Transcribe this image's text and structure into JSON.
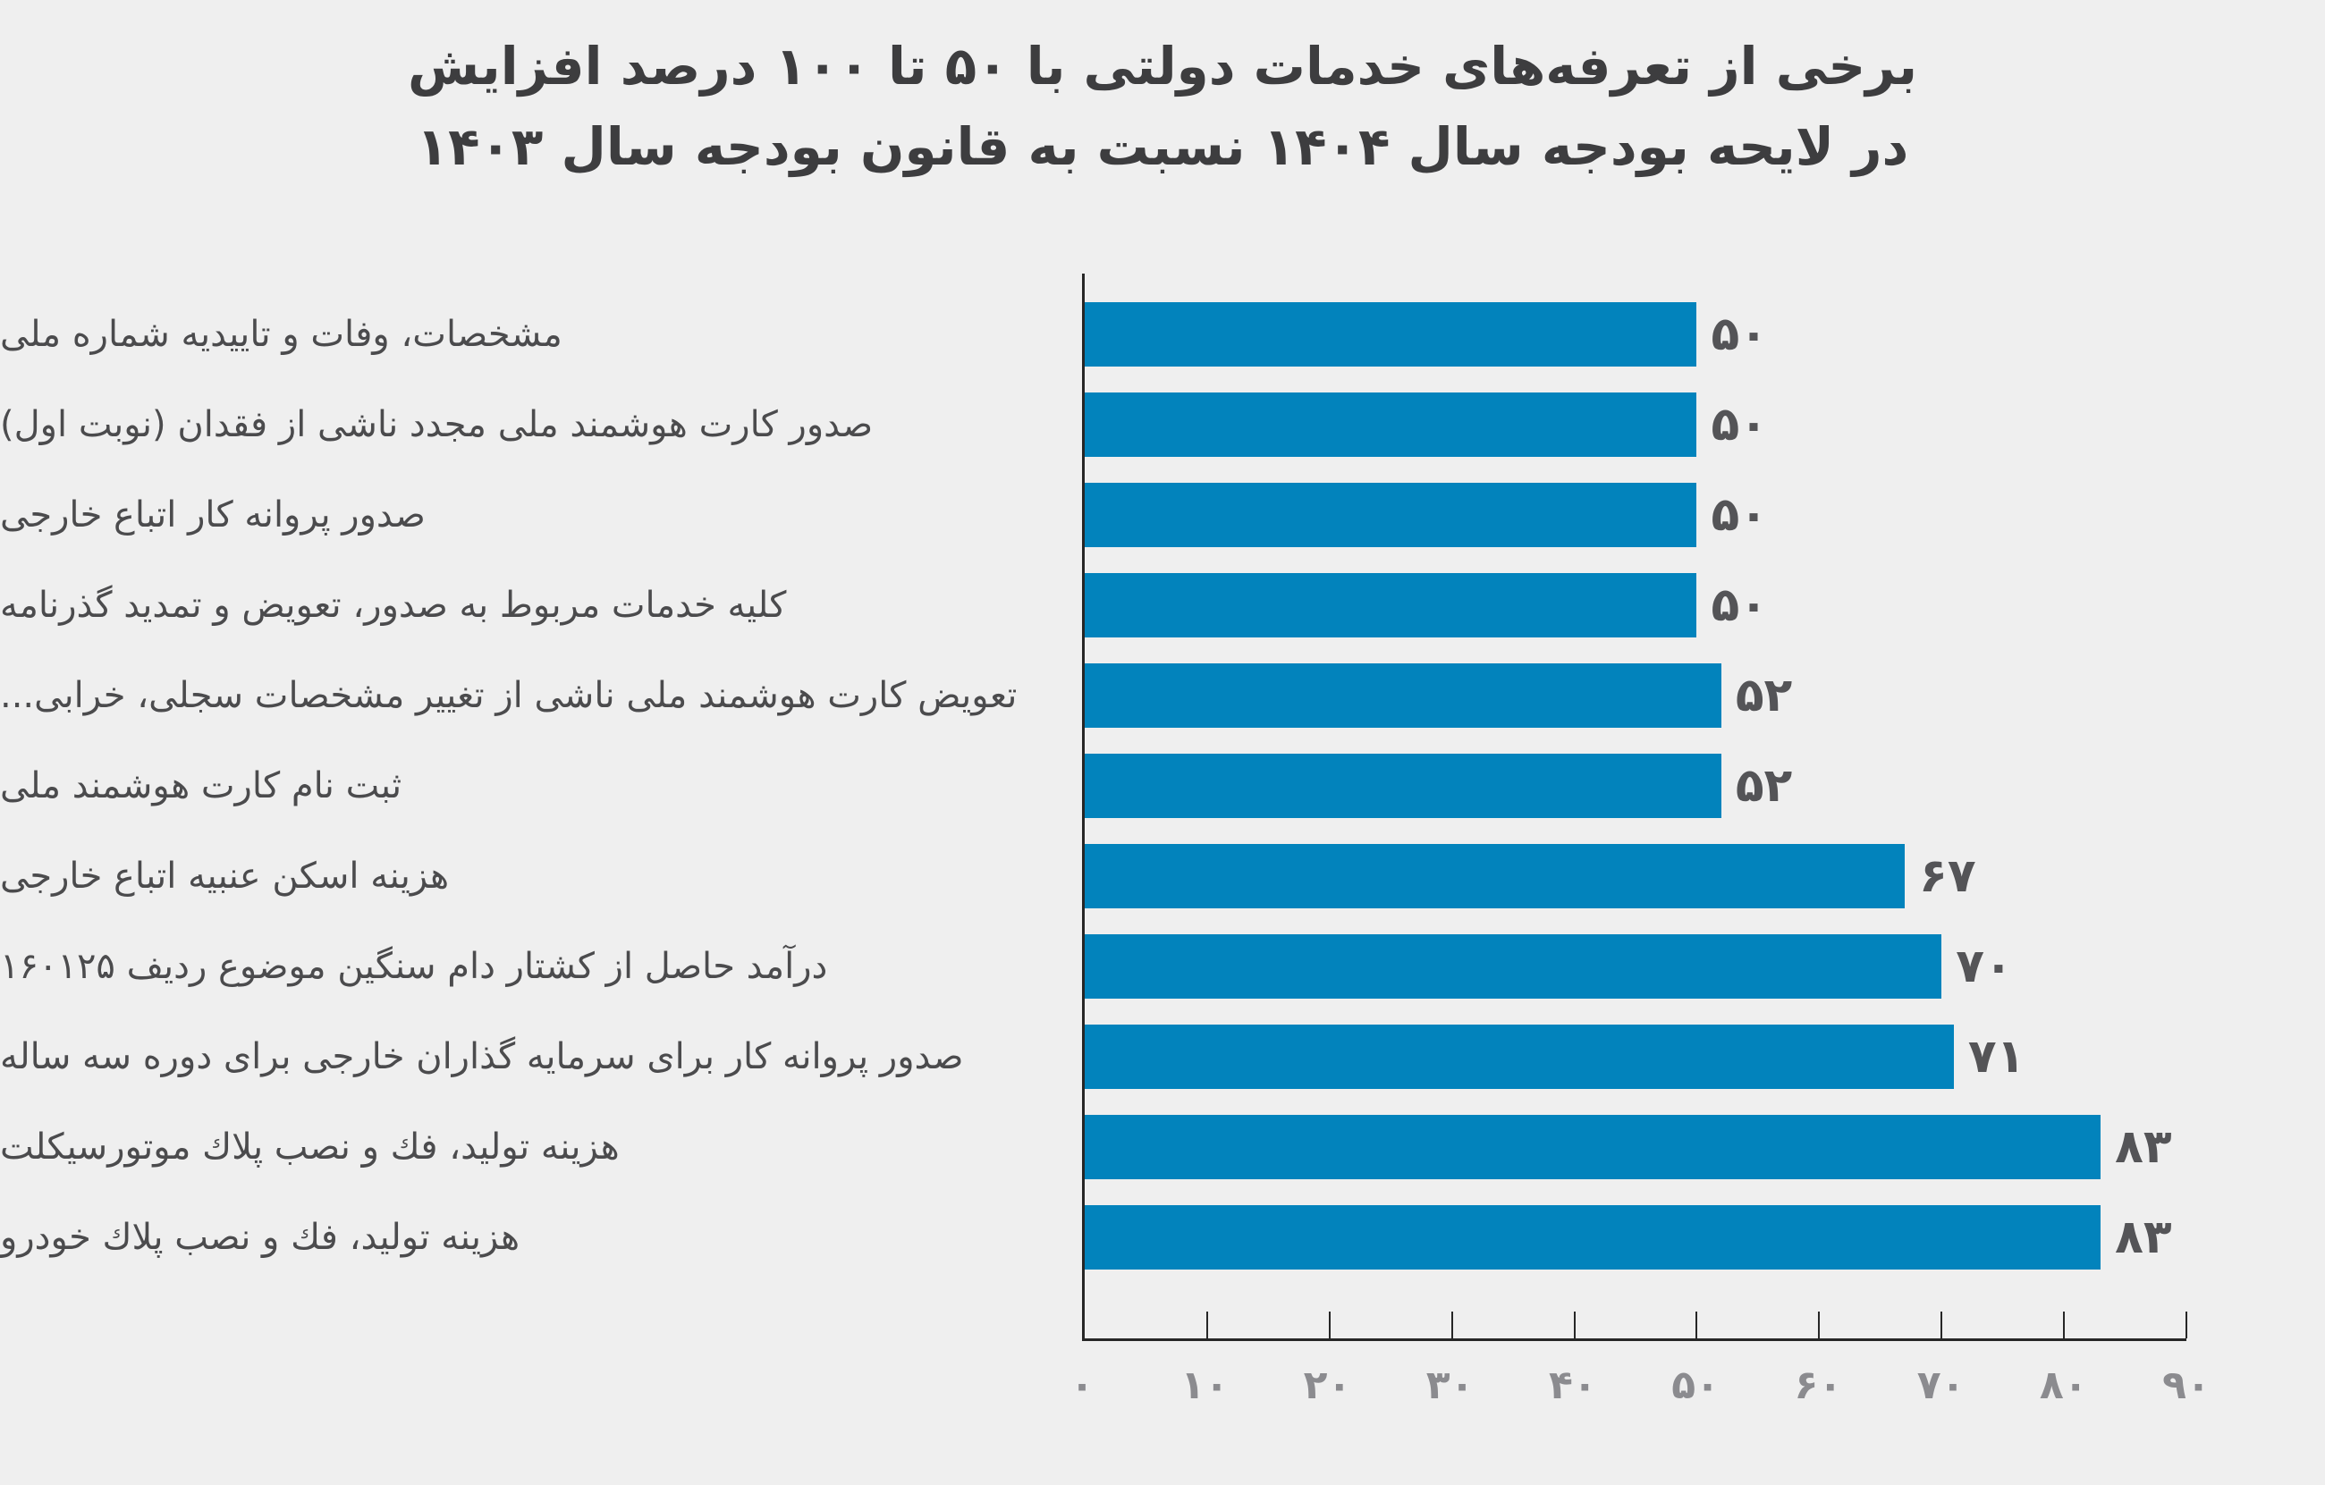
{
  "title": {
    "line1": "برخی از تعرفه‌های خدمات دولتی با ۵۰ تا ۱۰۰ درصد افزایش",
    "line2": "در لایحه بودجه سال ۱۴۰۴ نسبت به قانون بودجه سال ۱۴۰۳"
  },
  "colors": {
    "background": "#efefef",
    "bar": "#0283bc",
    "title_text": "#3d3d3f",
    "label_text": "#4b4b4d",
    "value_text": "#545457",
    "axis_line": "#262626",
    "tick_label": "#8b8b8f"
  },
  "chart_data": {
    "type": "bar",
    "orientation": "horizontal",
    "title": "برخی از تعرفه‌های خدمات دولتی با ۵۰ تا ۱۰۰ درصد افزایش در لایحه بودجه سال ۱۴۰۴ نسبت به قانون بودجه سال ۱۴۰۳",
    "categories": [
      "مشخصات، وفات و تاییدیه شماره ملی",
      "صدور کارت هوشمند ملی مجدد ناشی از فقدان (نوبت اول)",
      "صدور پروانه کار اتباع خارجی",
      "کلیه خدمات مربوط به صدور، تعویض و تمدید گذرنامه",
      "تعویض کارت هوشمند ملی ناشی از تغییر مشخصات سجلی، خرابی...",
      "ثبت نام کارت هوشمند ملی",
      "هزینه اسکن عنبیه اتباع خارجی",
      "درآمد حاصل از کشتار دام سنگین موضوع ردیف ۱۶۰۱۲۵",
      "صدور پروانه کار برای سرمایه گذاران خارجی برای دوره سه ساله",
      "هزینه تولید، فك و نصب پلاك موتورسیکلت",
      "هزینه تولید، فك و نصب پلاك خودرو"
    ],
    "values": [
      50,
      50,
      50,
      50,
      52,
      52,
      67,
      70,
      71,
      83,
      83
    ],
    "value_labels": [
      "۵۰",
      "۵۰",
      "۵۰",
      "۵۰",
      "۵۲",
      "۵۲",
      "۶۷",
      "۷۰",
      "۷۱",
      "۸۳",
      "۸۳"
    ],
    "xlabel": "",
    "ylabel": "",
    "xlim": [
      0,
      90
    ],
    "x_ticks": [
      0,
      10,
      20,
      30,
      40,
      50,
      60,
      70,
      80,
      90
    ],
    "x_tick_labels": [
      "۰",
      "۱۰",
      "۲۰",
      "۳۰",
      "۴۰",
      "۵۰",
      "۶۰",
      "۷۰",
      "۸۰",
      "۹۰"
    ],
    "grid": false,
    "legend_position": "none"
  }
}
